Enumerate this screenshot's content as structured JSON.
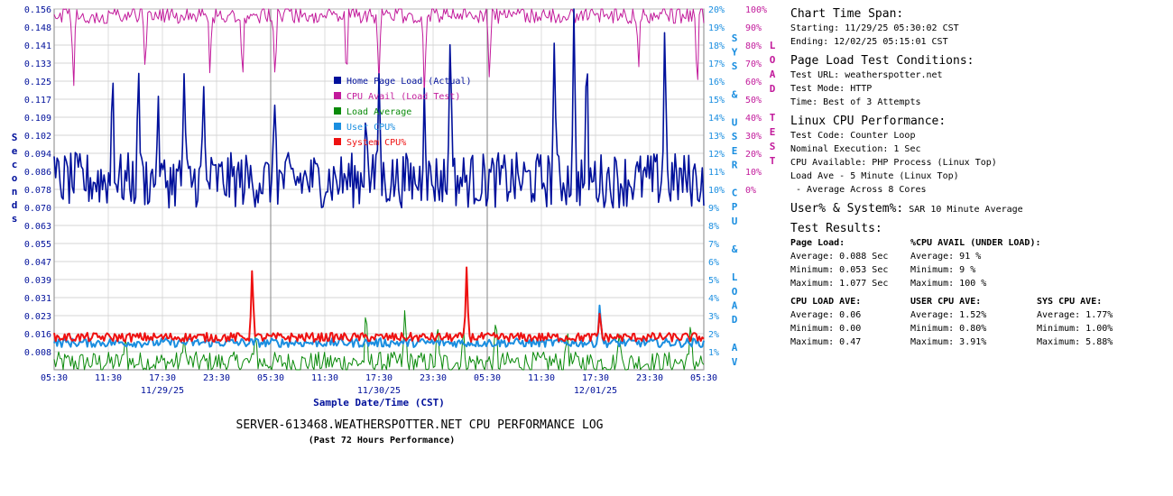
{
  "chart_data": {
    "type": "line",
    "title": "SERVER-613468.WEATHERSPOTTER.NET CPU PERFORMANCE LOG",
    "subtitle": "(Past 72 Hours Performance)",
    "xlabel": "Sample Date/Time (CST)",
    "ylabel_left": "Seconds",
    "ylabel_right_inner": "SYS & USER CPU & LOAD AV",
    "ylabel_right_outer": "LOAD TEST",
    "x_tick_labels": [
      "05:30",
      "11:30",
      "17:30",
      "23:30",
      "05:30",
      "11:30",
      "17:30",
      "23:30",
      "05:30",
      "11:30",
      "17:30",
      "23:30",
      "05:30"
    ],
    "x_date_labels": [
      "11/29/25",
      "11/30/25",
      "12/01/25"
    ],
    "y_left_ticks": [
      "0.156",
      "0.148",
      "0.141",
      "0.133",
      "0.125",
      "0.117",
      "0.109",
      "0.102",
      "0.094",
      "0.086",
      "0.078",
      "0.070",
      "0.063",
      "0.055",
      "0.047",
      "0.039",
      "0.031",
      "0.023",
      "0.016",
      "0.008"
    ],
    "y_left_range": [
      0,
      0.156
    ],
    "y_right_ticks": [
      "20%",
      "19%",
      "18%",
      "17%",
      "16%",
      "15%",
      "14%",
      "13%",
      "12%",
      "11%",
      "10%",
      "9%",
      "8%",
      "7%",
      "6%",
      "5%",
      "4%",
      "3%",
      "2%",
      "1%"
    ],
    "y_right_range": [
      0,
      20
    ],
    "y_loadtest_ticks": [
      "100%",
      "90%",
      "80%",
      "70%",
      "60%",
      "50%",
      "40%",
      "30%",
      "20%",
      "10%",
      "0%"
    ],
    "y_loadtest_range": [
      0,
      100
    ],
    "grid": true,
    "legend_position": "center-left inside plot",
    "legend": [
      {
        "label": "Home Page Load (Actual)",
        "color": "#00109b"
      },
      {
        "label": "CPU Avail (Load Test)",
        "color": "#c21a9b"
      },
      {
        "label": "Load Average",
        "color": "#0a8a0a"
      },
      {
        "label": "User CPU%",
        "color": "#1a8ee0"
      },
      {
        "label": "System CPU%",
        "color": "#ee1111"
      }
    ],
    "series": [
      {
        "name": "Home Page Load (Actual)",
        "axis": "seconds",
        "color": "#00109b",
        "baseline": 0.082,
        "amplitude": 0.012,
        "spikes": [
          [
            0.09,
            0.135
          ],
          [
            0.13,
            0.132
          ],
          [
            0.16,
            0.122
          ],
          [
            0.2,
            0.128
          ],
          [
            0.23,
            0.125
          ],
          [
            0.34,
            0.12
          ],
          [
            0.48,
            0.118
          ],
          [
            0.5,
            0.128
          ],
          [
            0.57,
            0.125
          ],
          [
            0.61,
            0.156
          ],
          [
            0.77,
            0.146
          ],
          [
            0.8,
            0.156
          ],
          [
            0.82,
            0.142
          ],
          [
            0.94,
            0.156
          ]
        ]
      },
      {
        "name": "CPU Avail (Load Test)",
        "axis": "loadtest",
        "color": "#c21a9b",
        "baseline": 95,
        "amplitude": 3,
        "dips": [
          [
            0.03,
            55
          ],
          [
            0.14,
            65
          ],
          [
            0.24,
            60
          ],
          [
            0.29,
            58
          ],
          [
            0.34,
            55
          ],
          [
            0.45,
            58
          ],
          [
            0.5,
            55
          ],
          [
            0.57,
            50
          ],
          [
            0.67,
            60
          ],
          [
            0.9,
            68
          ],
          [
            0.99,
            53
          ]
        ]
      },
      {
        "name": "Load Average",
        "axis": "percent",
        "color": "#0a8a0a",
        "baseline": 0.4,
        "amplitude": 0.6,
        "spikes": [
          [
            0.11,
            2.1
          ],
          [
            0.2,
            1.8
          ],
          [
            0.31,
            2.3
          ],
          [
            0.48,
            3.6
          ],
          [
            0.54,
            3.7
          ],
          [
            0.59,
            2.6
          ],
          [
            0.63,
            2.4
          ],
          [
            0.68,
            3.1
          ],
          [
            0.79,
            2.4
          ],
          [
            0.87,
            2.1
          ],
          [
            0.98,
            2.9
          ]
        ]
      },
      {
        "name": "User CPU%",
        "axis": "percent",
        "color": "#1a8ee0",
        "baseline": 1.5,
        "amplitude": 0.25,
        "spikes": [
          [
            0.84,
            3.9
          ]
        ]
      },
      {
        "name": "System CPU%",
        "axis": "percent",
        "color": "#ee1111",
        "baseline": 1.8,
        "amplitude": 0.25,
        "spikes": [
          [
            0.305,
            5.9
          ],
          [
            0.635,
            5.8
          ],
          [
            0.84,
            3.3
          ]
        ]
      }
    ]
  },
  "info": {
    "span_heading": "Chart Time Span:",
    "span_start": "Starting: 11/29/25 05:30:02 CST",
    "span_end": "Ending: 12/02/25 05:15:01 CST",
    "conditions_heading": "Page Load Test Conditions:",
    "test_url": "Test URL: weatherspotter.net",
    "test_mode": "Test Mode: HTTP",
    "test_time": "Time:  Best of 3 Attempts",
    "linux_heading": "Linux CPU Performance:",
    "test_code": "Test Code: Counter Loop",
    "nominal": "Nominal Execution: 1 Sec",
    "cpu_available": "CPU Available:  PHP Process (Linux Top)",
    "load_ave": "Load Ave - 5 Minute (Linux Top)",
    "load_ave_note": " - Average Across 8 Cores",
    "userpct_heading": "User% & System%:",
    "userpct_note": "SAR 10 Minute Average",
    "results_heading": "Test Results:",
    "page_load": {
      "title": "Page Load:",
      "avg": "Average: 0.088 Sec",
      "min": "Minimum: 0.053 Sec",
      "max": "Maximum: 1.077 Sec"
    },
    "cpu_avail": {
      "title": "%CPU AVAIL (UNDER LOAD):",
      "avg": "Average: 91 %",
      "min": "Minimum: 9 %",
      "max": "Maximum: 100 %"
    },
    "cpu_load": {
      "title": "CPU LOAD AVE:",
      "avg": "Average: 0.06",
      "min": "Minimum: 0.00",
      "max": "Maximum: 0.47"
    },
    "user_cpu": {
      "title": "USER CPU AVE:",
      "avg": "Average: 1.52%",
      "min": "Minimum: 0.80%",
      "max": "Maximum: 3.91%"
    },
    "sys_cpu": {
      "title": "SYS CPU AVE:",
      "avg": "Average: 1.77%",
      "min": "Minimum: 1.00%",
      "max": "Maximum: 5.88%"
    }
  }
}
